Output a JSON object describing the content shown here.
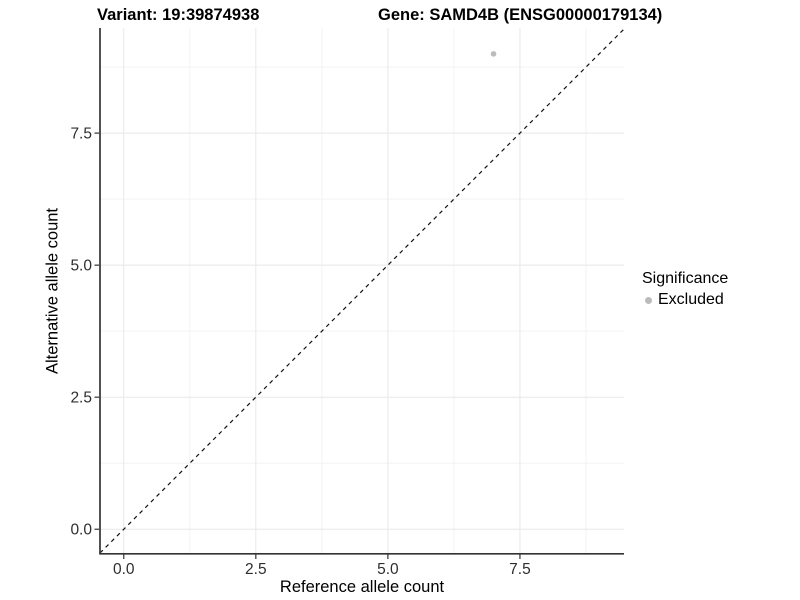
{
  "chart_data": {
    "type": "scatter",
    "titles": [
      "Variant: 19:39874938",
      "Gene: SAMD4B (ENSG00000179134)"
    ],
    "xlabel": "Reference allele count",
    "ylabel": "Alternative allele count",
    "xlim": [
      -0.45,
      9.47
    ],
    "ylim": [
      -0.45,
      9.49
    ],
    "x_ticks": [
      {
        "value": 0,
        "label": "0.0"
      },
      {
        "value": 2.5,
        "label": "2.5"
      },
      {
        "value": 5,
        "label": "5.0"
      },
      {
        "value": 7.5,
        "label": "7.5"
      }
    ],
    "y_ticks": [
      {
        "value": 0,
        "label": "0.0"
      },
      {
        "value": 2.5,
        "label": "2.5"
      },
      {
        "value": 5,
        "label": "5.0"
      },
      {
        "value": 7.5,
        "label": "7.5"
      }
    ],
    "x_minor": [
      1.25,
      3.75,
      6.25,
      8.75
    ],
    "y_minor": [
      1.25,
      3.75,
      6.25,
      8.75
    ],
    "points": [
      {
        "x": 7,
        "y": 9,
        "significance": "Excluded"
      }
    ],
    "reference_line": {
      "type": "identity",
      "slope": 1,
      "intercept": 0,
      "style": "dashed"
    },
    "grid": {
      "major": true,
      "minor": true
    },
    "legend": {
      "title": "Significance",
      "position": "right",
      "items": [
        {
          "label": "Excluded",
          "color": "#bbbbbb"
        }
      ]
    },
    "colors": {
      "point": "#bbbbbb",
      "reference_line": "#111111",
      "axis_line": "#333333",
      "tick": "#333333",
      "tick_label": "#2e2e2e",
      "grid_major": "#e8e8e8",
      "grid_minor": "#f3f3f3",
      "background": "#ffffff"
    }
  }
}
